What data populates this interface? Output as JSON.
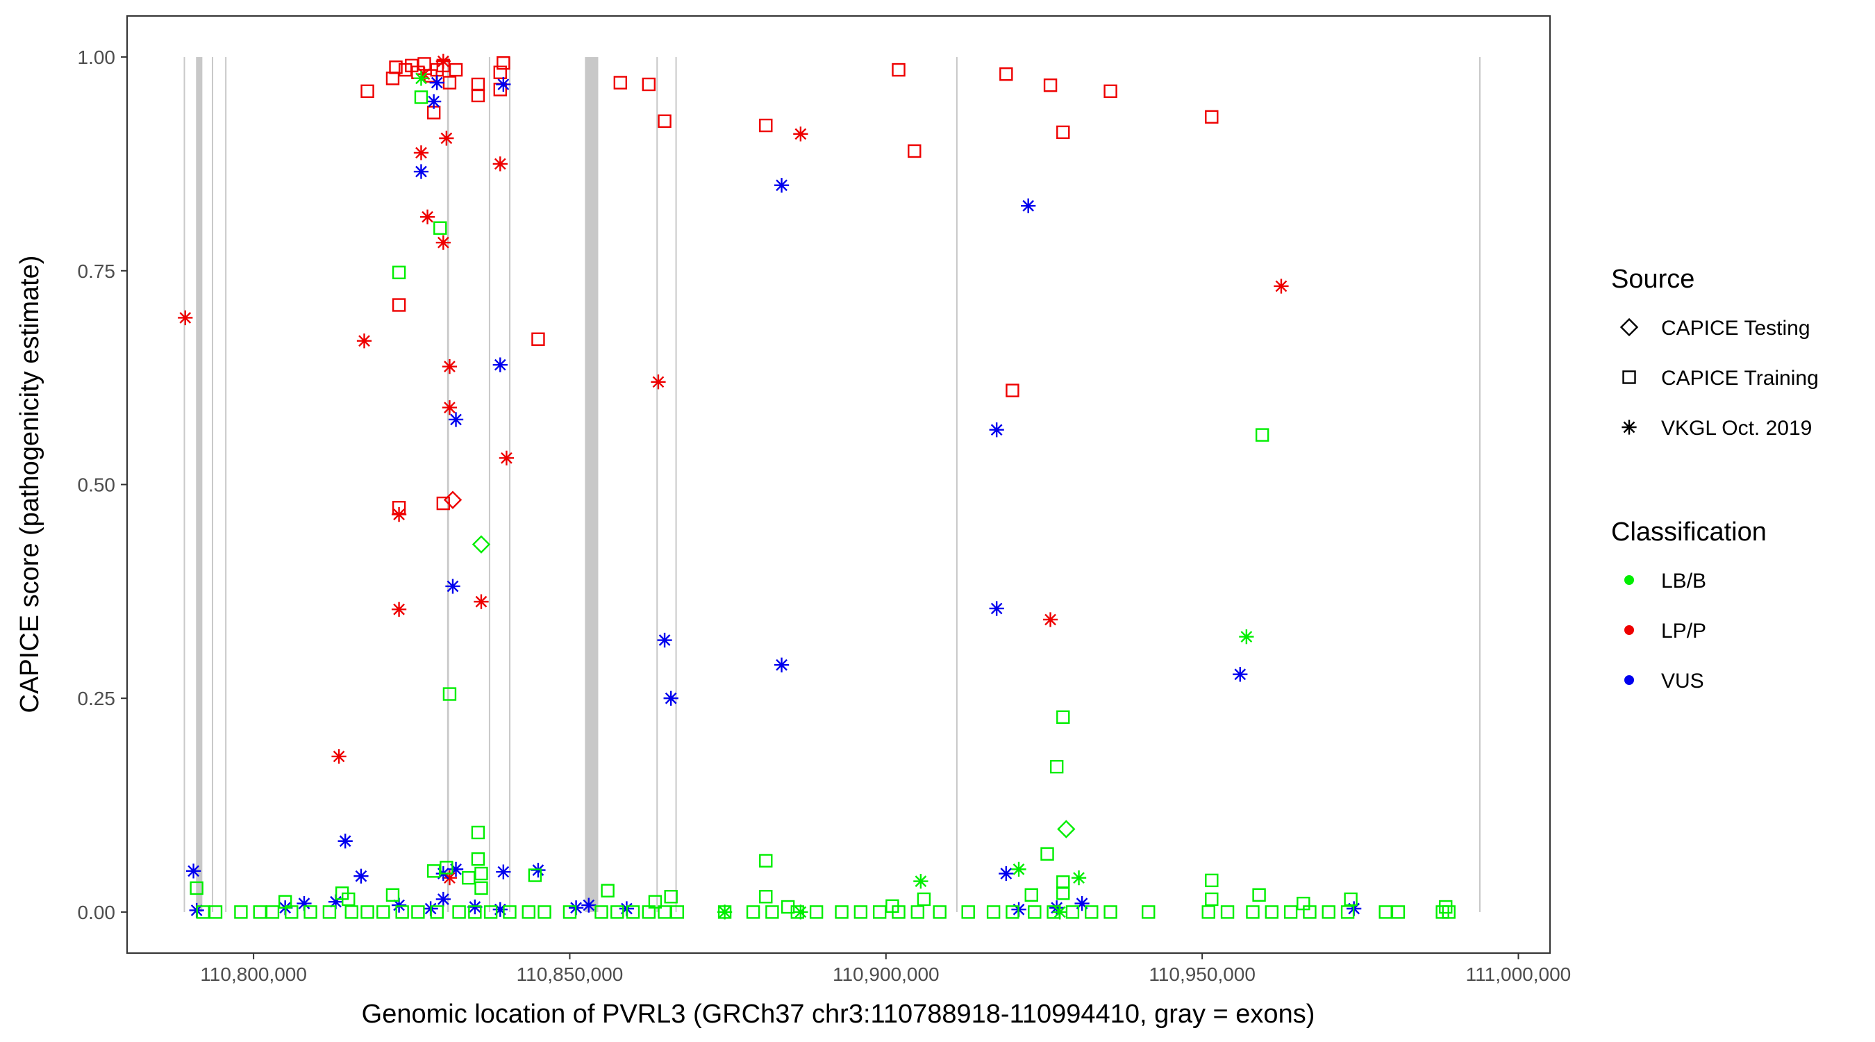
{
  "chart_data": {
    "type": "scatter",
    "xlabel": "Genomic location of PVRL3 (GRCh37 chr3:110788918-110994410, gray = exons)",
    "ylabel": "CAPICE score (pathogenicity estimate)",
    "xlim": [
      110780000,
      111005000
    ],
    "ylim": [
      -0.048,
      1.048
    ],
    "x_ticks": [
      110800000,
      110850000,
      110900000,
      110950000,
      111000000
    ],
    "x_tick_labels": [
      "110,800,000",
      "110,850,000",
      "110,900,000",
      "110,950,000",
      "111,000,000"
    ],
    "y_ticks": [
      0,
      0.25,
      0.5,
      0.75,
      1.0
    ],
    "y_tick_labels": [
      "0.00",
      "0.25",
      "0.50",
      "0.75",
      "1.00"
    ],
    "grid": false,
    "exons": [
      {
        "start": 110788950,
        "end": 110789100
      },
      {
        "start": 110790900,
        "end": 110791900
      },
      {
        "start": 110793400,
        "end": 110793550
      },
      {
        "start": 110795500,
        "end": 110795650
      },
      {
        "start": 110830600,
        "end": 110830900
      },
      {
        "start": 110837200,
        "end": 110837350
      },
      {
        "start": 110840400,
        "end": 110840550
      },
      {
        "start": 110852400,
        "end": 110854500
      },
      {
        "start": 110863700,
        "end": 110863850
      },
      {
        "start": 110866700,
        "end": 110866850
      },
      {
        "start": 110911100,
        "end": 110911250
      },
      {
        "start": 110993800,
        "end": 110993950
      }
    ],
    "legend": {
      "placement": "right",
      "source": {
        "title": "Source",
        "entries": [
          {
            "label": "CAPICE Testing",
            "shape": "diamond"
          },
          {
            "label": "CAPICE Training",
            "shape": "square"
          },
          {
            "label": "VKGL Oct. 2019",
            "shape": "asterisk"
          }
        ]
      },
      "classification": {
        "title": "Classification",
        "entries": [
          {
            "label": "LB/B",
            "color": "#00ee00"
          },
          {
            "label": "LP/P",
            "color": "#ee0000"
          },
          {
            "label": "VUS",
            "color": "#0000ee"
          }
        ]
      }
    },
    "series": [
      {
        "class": "LP/P",
        "source": "CAPICE Training",
        "color": "#ee0000",
        "shape": "square",
        "points": [
          [
            110818000,
            0.96
          ],
          [
            110822000,
            0.975
          ],
          [
            110822500,
            0.988
          ],
          [
            110824000,
            0.985
          ],
          [
            110825000,
            0.99
          ],
          [
            110826000,
            0.982
          ],
          [
            110827000,
            0.992
          ],
          [
            110828000,
            0.978
          ],
          [
            110829000,
            0.985
          ],
          [
            110830000,
            0.99
          ],
          [
            110831000,
            0.97
          ],
          [
            110832000,
            0.985
          ],
          [
            110828500,
            0.935
          ],
          [
            110835500,
            0.955
          ],
          [
            110835500,
            0.968
          ],
          [
            110839000,
            0.982
          ],
          [
            110839500,
            0.993
          ],
          [
            110839000,
            0.962
          ],
          [
            110858000,
            0.97
          ],
          [
            110862500,
            0.968
          ],
          [
            110865000,
            0.925
          ],
          [
            110881000,
            0.92
          ],
          [
            110902000,
            0.985
          ],
          [
            110904500,
            0.89
          ],
          [
            110919000,
            0.98
          ],
          [
            110926000,
            0.967
          ],
          [
            110928000,
            0.912
          ],
          [
            110935500,
            0.96
          ],
          [
            110951500,
            0.93
          ],
          [
            110823000,
            0.71
          ],
          [
            110845000,
            0.67
          ],
          [
            110823000,
            0.473
          ],
          [
            110830000,
            0.478
          ],
          [
            110920000,
            0.61
          ]
        ]
      },
      {
        "class": "LP/P",
        "source": "VKGL Oct. 2019",
        "color": "#ee0000",
        "shape": "asterisk",
        "points": [
          [
            110789200,
            0.695
          ],
          [
            110827000,
            0.98
          ],
          [
            110830000,
            0.995
          ],
          [
            110826500,
            0.888
          ],
          [
            110830500,
            0.905
          ],
          [
            110827500,
            0.813
          ],
          [
            110830000,
            0.783
          ],
          [
            110839000,
            0.875
          ],
          [
            110886500,
            0.91
          ],
          [
            110817500,
            0.668
          ],
          [
            110831000,
            0.638
          ],
          [
            110831000,
            0.59
          ],
          [
            110864000,
            0.62
          ],
          [
            110840000,
            0.531
          ],
          [
            110823000,
            0.465
          ],
          [
            110823000,
            0.354
          ],
          [
            110836000,
            0.363
          ],
          [
            110926000,
            0.342
          ],
          [
            110962500,
            0.732
          ],
          [
            110813500,
            0.182
          ],
          [
            110831000,
            0.04
          ]
        ]
      },
      {
        "class": "LP/P",
        "source": "CAPICE Testing",
        "color": "#ee0000",
        "shape": "diamond",
        "points": [
          [
            110831500,
            0.482
          ]
        ]
      },
      {
        "class": "VUS",
        "source": "VKGL Oct. 2019",
        "color": "#0000ee",
        "shape": "asterisk",
        "points": [
          [
            110829000,
            0.97
          ],
          [
            110828500,
            0.948
          ],
          [
            110839500,
            0.968
          ],
          [
            110826500,
            0.866
          ],
          [
            110883500,
            0.85
          ],
          [
            110922500,
            0.826
          ],
          [
            110839000,
            0.64
          ],
          [
            110832000,
            0.576
          ],
          [
            110917500,
            0.564
          ],
          [
            110831500,
            0.381
          ],
          [
            110917500,
            0.355
          ],
          [
            110865000,
            0.318
          ],
          [
            110883500,
            0.289
          ],
          [
            110866000,
            0.25
          ],
          [
            110956000,
            0.278
          ],
          [
            110814500,
            0.083
          ],
          [
            110790500,
            0.048
          ],
          [
            110817000,
            0.042
          ],
          [
            110830000,
            0.045
          ],
          [
            110832000,
            0.05
          ],
          [
            110839500,
            0.047
          ],
          [
            110845000,
            0.049
          ],
          [
            110919000,
            0.045
          ],
          [
            110805000,
            0.005
          ],
          [
            110808000,
            0.01
          ],
          [
            110813000,
            0.012
          ],
          [
            110823000,
            0.008
          ],
          [
            110828000,
            0.004
          ],
          [
            110830000,
            0.015
          ],
          [
            110835000,
            0.006
          ],
          [
            110839000,
            0.003
          ],
          [
            110851000,
            0.005
          ],
          [
            110853000,
            0.008
          ],
          [
            110859000,
            0.004
          ],
          [
            110921000,
            0.003
          ],
          [
            110927000,
            0.005
          ],
          [
            110931000,
            0.01
          ],
          [
            110974000,
            0.004
          ],
          [
            110791000,
            0.002
          ]
        ]
      },
      {
        "class": "LB/B",
        "source": "CAPICE Training",
        "color": "#00ee00",
        "shape": "square",
        "points": [
          [
            110826500,
            0.953
          ],
          [
            110829500,
            0.8
          ],
          [
            110823000,
            0.748
          ],
          [
            110831000,
            0.255
          ],
          [
            110959500,
            0.558
          ],
          [
            110928000,
            0.228
          ],
          [
            110927000,
            0.17
          ],
          [
            110835500,
            0.093
          ],
          [
            110835500,
            0.062
          ],
          [
            110881000,
            0.06
          ],
          [
            110925500,
            0.068
          ],
          [
            110791000,
            0.028
          ],
          [
            110805000,
            0.012
          ],
          [
            110814000,
            0.022
          ],
          [
            110815000,
            0.015
          ],
          [
            110822000,
            0.02
          ],
          [
            110828500,
            0.048
          ],
          [
            110830500,
            0.052
          ],
          [
            110834000,
            0.04
          ],
          [
            110836000,
            0.045
          ],
          [
            110836000,
            0.028
          ],
          [
            110844500,
            0.043
          ],
          [
            110856000,
            0.025
          ],
          [
            110863500,
            0.012
          ],
          [
            110866000,
            0.018
          ],
          [
            110881000,
            0.018
          ],
          [
            110884500,
            0.006
          ],
          [
            110901000,
            0.007
          ],
          [
            110906000,
            0.015
          ],
          [
            110923000,
            0.02
          ],
          [
            110928000,
            0.035
          ],
          [
            110928000,
            0.022
          ],
          [
            110951500,
            0.037
          ],
          [
            110951500,
            0.015
          ],
          [
            110959000,
            0.02
          ],
          [
            110966000,
            0.01
          ],
          [
            110973500,
            0.015
          ],
          [
            110988500,
            0.006
          ],
          [
            110792000,
            0.0
          ],
          [
            110794000,
            0.0
          ],
          [
            110798000,
            0.0
          ],
          [
            110801000,
            0.0
          ],
          [
            110803000,
            0.0
          ],
          [
            110806000,
            0.0
          ],
          [
            110809000,
            0.0
          ],
          [
            110812000,
            0.0
          ],
          [
            110815500,
            0.0
          ],
          [
            110818000,
            0.0
          ],
          [
            110820500,
            0.0
          ],
          [
            110823500,
            0.0
          ],
          [
            110826000,
            0.0
          ],
          [
            110829000,
            0.0
          ],
          [
            110832500,
            0.0
          ],
          [
            110835000,
            0.0
          ],
          [
            110837500,
            0.0
          ],
          [
            110840500,
            0.0
          ],
          [
            110843500,
            0.0
          ],
          [
            110846000,
            0.0
          ],
          [
            110850000,
            0.0
          ],
          [
            110855000,
            0.0
          ],
          [
            110857500,
            0.0
          ],
          [
            110860000,
            0.0
          ],
          [
            110862500,
            0.0
          ],
          [
            110865000,
            0.0
          ],
          [
            110867000,
            0.0
          ],
          [
            110874500,
            0.0
          ],
          [
            110879000,
            0.0
          ],
          [
            110882000,
            0.0
          ],
          [
            110886000,
            0.0
          ],
          [
            110889000,
            0.0
          ],
          [
            110893000,
            0.0
          ],
          [
            110896000,
            0.0
          ],
          [
            110899000,
            0.0
          ],
          [
            110902000,
            0.0
          ],
          [
            110905000,
            0.0
          ],
          [
            110908500,
            0.0
          ],
          [
            110913000,
            0.0
          ],
          [
            110917000,
            0.0
          ],
          [
            110920000,
            0.0
          ],
          [
            110923500,
            0.0
          ],
          [
            110926500,
            0.0
          ],
          [
            110929500,
            0.0
          ],
          [
            110932500,
            0.0
          ],
          [
            110935500,
            0.0
          ],
          [
            110941500,
            0.0
          ],
          [
            110951000,
            0.0
          ],
          [
            110954000,
            0.0
          ],
          [
            110958000,
            0.0
          ],
          [
            110961000,
            0.0
          ],
          [
            110964000,
            0.0
          ],
          [
            110967000,
            0.0
          ],
          [
            110970000,
            0.0
          ],
          [
            110973000,
            0.0
          ],
          [
            110979000,
            0.0
          ],
          [
            110981000,
            0.0
          ],
          [
            110988000,
            0.0
          ],
          [
            110989000,
            0.0
          ]
        ]
      },
      {
        "class": "LB/B",
        "source": "VKGL Oct. 2019",
        "color": "#00ee00",
        "shape": "asterisk",
        "points": [
          [
            110957000,
            0.322
          ],
          [
            110905500,
            0.036
          ],
          [
            110921000,
            0.05
          ],
          [
            110930500,
            0.04
          ],
          [
            110826500,
            0.975
          ],
          [
            110874500,
            0.0
          ],
          [
            110886500,
            0.0
          ],
          [
            110927500,
            0.0
          ]
        ]
      },
      {
        "class": "LB/B",
        "source": "CAPICE Testing",
        "color": "#00ee00",
        "shape": "diamond",
        "points": [
          [
            110836000,
            0.43
          ],
          [
            110928500,
            0.097
          ]
        ]
      }
    ]
  }
}
